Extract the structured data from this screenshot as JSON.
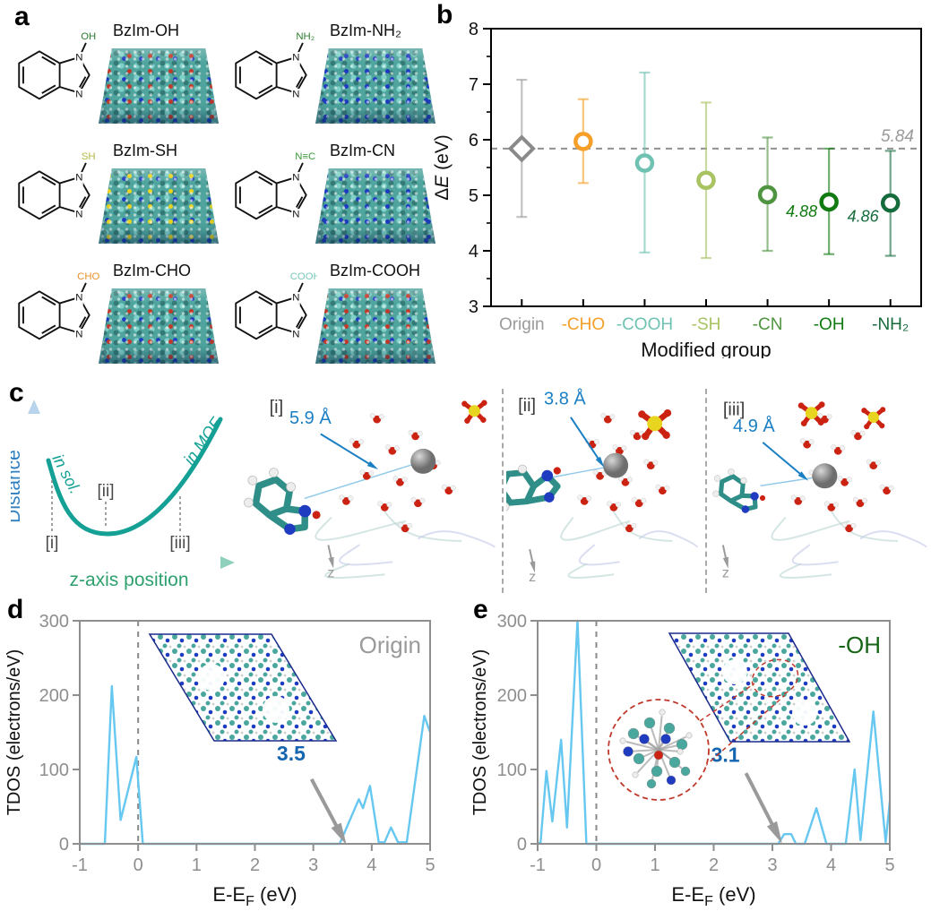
{
  "colors": {
    "tdos_line": "#66c7f0",
    "axis_gray": "#8e8e8e",
    "annotation_blue": "#1565b0",
    "arrow_gray": "#9a9a9a",
    "schematic_teal": "#14a095",
    "distance_blue": "#2f7fc1",
    "zaxis_green": "#2ea06e",
    "snapshot_label_gray": "#3c3c3c",
    "measure_blue": "#1b7fc4"
  },
  "panels": {
    "a": {
      "letter": "a",
      "molecules": [
        {
          "label": "BzIm-OH",
          "substituent": "OH",
          "substituent_color": "#2e7d32",
          "dot_color": "#c0392b"
        },
        {
          "label": "BzIm-NH₂",
          "substituent": "NH₂",
          "substituent_color": "#2e7d32",
          "dot_color": "#1d3bc0"
        },
        {
          "label": "BzIm-SH",
          "substituent": "SH",
          "substituent_color": "#b5b942",
          "dot_color": "#e8d31f"
        },
        {
          "label": "BzIm-CN",
          "substituent": "N≡C",
          "substituent_color": "#3a9a3a",
          "dot_color": "#1d3bc0"
        },
        {
          "label": "BzIm-CHO",
          "substituent": "CHO",
          "substituent_color": "#e8922a",
          "dot_color": "#c0392b"
        },
        {
          "label": "BzIm-COOH",
          "substituent": "COOH",
          "substituent_color": "#7ac8b8",
          "dot_color": "#c0392b"
        }
      ]
    },
    "b": {
      "letter": "b"
    },
    "c": {
      "letter": "c",
      "schematic": {
        "ylabel": "Distance",
        "xlabel": "z-axis position",
        "branch_left": "in sol.",
        "branch_right": "in MOF",
        "point_labels": [
          "[i]",
          "[ii]",
          "[iii]"
        ]
      },
      "snapshots": [
        {
          "label": "[i]",
          "distance": "5.9 Å",
          "z": "z"
        },
        {
          "label": "[ii]",
          "distance": "3.8 Å",
          "z": "z"
        },
        {
          "label": "[iii]",
          "distance": "4.9 Å",
          "z": "z"
        }
      ]
    },
    "d": {
      "letter": "d"
    },
    "e": {
      "letter": "e"
    }
  },
  "chart_data": [
    {
      "panel": "b",
      "type": "scatter",
      "xlabel": "Modified group",
      "ylabel": "ΔE (eV)",
      "ylim": [
        3,
        8
      ],
      "yticks": [
        3,
        4,
        5,
        6,
        7,
        8
      ],
      "categories": [
        "Origin",
        "-CHO",
        "-COOH",
        "-SH",
        "-CN",
        "-OH",
        "-NH₂"
      ],
      "values": [
        5.84,
        5.97,
        5.58,
        5.27,
        5.01,
        4.88,
        4.86
      ],
      "err_low": [
        4.61,
        5.22,
        3.97,
        3.87,
        4.0,
        3.94,
        3.91
      ],
      "err_high": [
        7.08,
        6.73,
        7.21,
        6.67,
        6.04,
        5.84,
        5.8
      ],
      "markers": [
        "diamond",
        "circle",
        "circle",
        "circle",
        "circle",
        "circle",
        "circle"
      ],
      "colors": [
        "#9a9a9a",
        "#f59f28",
        "#6fc2b2",
        "#a9c362",
        "#4f9440",
        "#117a11",
        "#166b3d"
      ],
      "refline": {
        "value": 5.84,
        "label": "5.84",
        "color": "#9a9a9a"
      },
      "annotations": [
        {
          "text": "4.88",
          "cat": 5,
          "value": 4.71
        },
        {
          "text": "4.86",
          "cat": 6,
          "value": 4.62
        }
      ]
    },
    {
      "panel": "d",
      "type": "line",
      "xlabel": "E-E_F (eV)",
      "ylabel": "TDOS (electrons/eV)",
      "xlim": [
        -1,
        5
      ],
      "ylim": [
        0,
        300
      ],
      "xticks": [
        -1,
        0,
        1,
        2,
        3,
        4,
        5
      ],
      "yticks": [
        0,
        100,
        200,
        300
      ],
      "zero_dashed_at": 0,
      "x": [
        -1,
        -0.57,
        -0.45,
        -0.3,
        -0.03,
        0.08,
        3.45,
        3.78,
        3.85,
        3.97,
        4.12,
        4.22,
        4.33,
        4.45,
        4.6,
        4.9,
        5.0
      ],
      "y": [
        0,
        0,
        212,
        32,
        117,
        0,
        0,
        60,
        48,
        78,
        2,
        2,
        22,
        2,
        2,
        172,
        150
      ],
      "annotation": {
        "text": "3.5",
        "x": 2.62,
        "y": 112,
        "arrow": [
          2.97,
          87,
          3.45,
          16
        ]
      },
      "tag": "Origin",
      "tag_color": "#9a9a9a",
      "band_gap_visual": "gap between 0.1 and 3.5 eV"
    },
    {
      "panel": "e",
      "type": "line",
      "xlabel": "E-E_F (eV)",
      "ylabel": "TDOS (electrons/eV)",
      "xlim": [
        -1,
        5
      ],
      "ylim": [
        0,
        300
      ],
      "xticks": [
        -1,
        0,
        1,
        2,
        3,
        4,
        5
      ],
      "yticks": [
        0,
        100,
        200,
        300
      ],
      "zero_dashed_at": 0,
      "x": [
        -1,
        -0.95,
        -0.85,
        -0.75,
        -0.6,
        -0.5,
        -0.32,
        -0.17,
        3.1,
        3.2,
        3.32,
        3.4,
        3.55,
        3.75,
        3.92,
        4.25,
        4.4,
        4.5,
        4.72,
        4.93,
        5.0
      ],
      "y": [
        0,
        2,
        98,
        30,
        140,
        22,
        300,
        0,
        0,
        13,
        13,
        0,
        0,
        48,
        0,
        0,
        100,
        5,
        178,
        2,
        57
      ],
      "annotation": {
        "text": "3.1",
        "x": 2.2,
        "y": 110,
        "arrow": [
          2.55,
          95,
          3.05,
          18
        ]
      },
      "tag": "-OH",
      "tag_color": "#166616",
      "band_gap_visual": "gap between 0 and 3.1 eV"
    }
  ]
}
